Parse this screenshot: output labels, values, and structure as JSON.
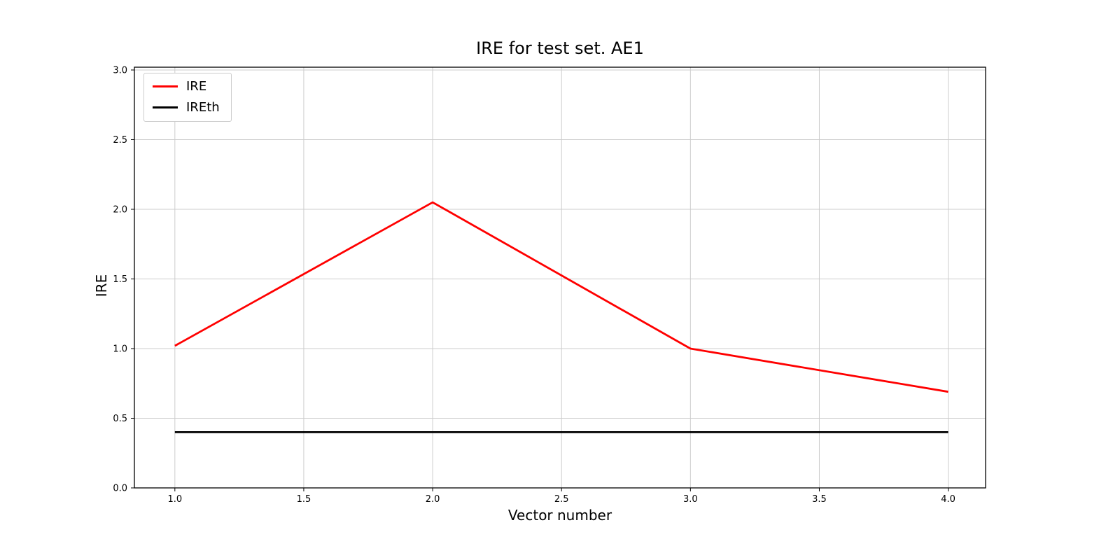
{
  "chart_data": {
    "type": "line",
    "title": "IRE for test set. AE1",
    "xlabel": "Vector number",
    "ylabel": "IRE",
    "x": [
      1.0,
      2.0,
      3.0,
      4.0
    ],
    "series": [
      {
        "name": "IRE",
        "color": "#ff0000",
        "values": [
          1.02,
          2.05,
          1.0,
          0.69
        ]
      },
      {
        "name": "IREth",
        "color": "#000000",
        "values": [
          0.4,
          0.4,
          0.4,
          0.4
        ]
      }
    ],
    "xticks": [
      1.0,
      1.5,
      2.0,
      2.5,
      3.0,
      3.5,
      4.0
    ],
    "yticks": [
      0.0,
      0.5,
      1.0,
      1.5,
      2.0,
      2.5,
      3.0
    ],
    "xlim": [
      0.843,
      4.145
    ],
    "ylim": [
      0.0,
      3.02
    ],
    "grid": true,
    "grid_color": "#cccccc",
    "frame_color": "#000000",
    "tick_font_size": 13,
    "legend_position": "upper left"
  }
}
